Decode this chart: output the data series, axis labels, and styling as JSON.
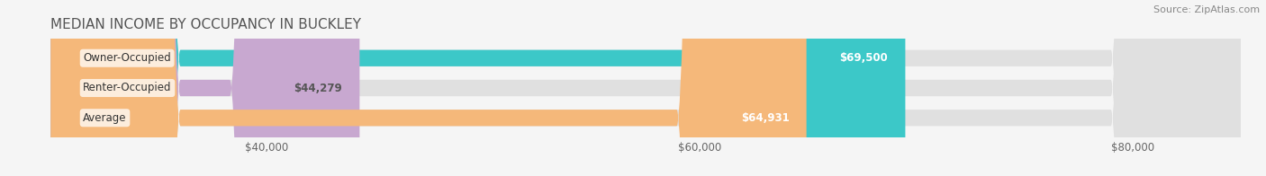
{
  "title": "MEDIAN INCOME BY OCCUPANCY IN BUCKLEY",
  "source": "Source: ZipAtlas.com",
  "categories": [
    "Owner-Occupied",
    "Renter-Occupied",
    "Average"
  ],
  "values": [
    69500,
    44279,
    64931
  ],
  "bar_colors": [
    "#3cc8c8",
    "#c8a8d0",
    "#f5b87a"
  ],
  "bar_labels": [
    "$69,500",
    "$44,279",
    "$64,931"
  ],
  "xlim": [
    30000,
    85000
  ],
  "xticks": [
    40000,
    60000,
    80000
  ],
  "xtick_labels": [
    "$40,000",
    "$60,000",
    "$80,000"
  ],
  "background_color": "#f5f5f5",
  "bar_background_color": "#e0e0e0",
  "title_fontsize": 11,
  "label_fontsize": 8.5,
  "source_fontsize": 8,
  "value_label_colors": [
    "#ffffff",
    "#555555",
    "#ffffff"
  ]
}
